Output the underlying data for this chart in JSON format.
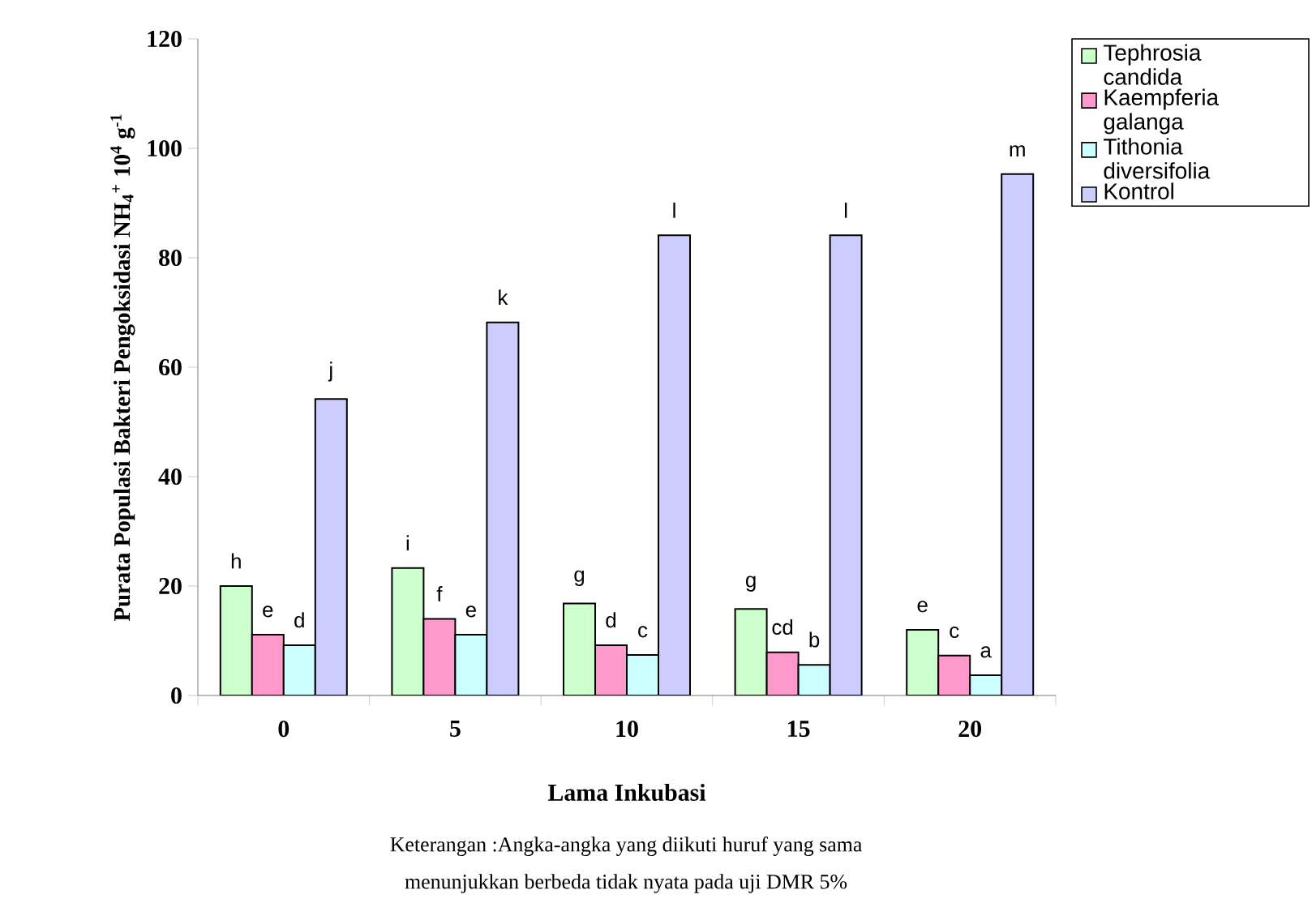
{
  "chart_data": {
    "type": "bar",
    "xlabel": "Lama Inkubasi",
    "ylabel": "Purata Populasi Bakteri Pengoksidasi NH$_{4}$$^{+}$ 10$^{4}$ g$^{-1}$",
    "categories": [
      "0",
      "5",
      "10",
      "15",
      "20"
    ],
    "series": [
      {
        "name": "Tephrosia candida",
        "color": "#ccffcc",
        "values": [
          20.0,
          23.3,
          16.8,
          15.8,
          12.0
        ],
        "value_labels": [
          "h",
          "i",
          "g",
          "g",
          "e"
        ]
      },
      {
        "name": "Kaempferia galanga",
        "color": "#ff99cc",
        "values": [
          11.1,
          14.0,
          9.2,
          7.9,
          7.3
        ],
        "value_labels": [
          "e",
          "f",
          "d",
          "cd",
          "c"
        ]
      },
      {
        "name": "Tithonia diversifolia",
        "color": "#ccffff",
        "values": [
          9.2,
          11.1,
          7.4,
          5.6,
          3.7
        ],
        "value_labels": [
          "d",
          "e",
          "c",
          "b",
          "a"
        ]
      },
      {
        "name": "Kontrol",
        "color": "#ccccff",
        "values": [
          54.2,
          68.2,
          84.1,
          84.1,
          95.3
        ],
        "value_labels": [
          "j",
          "k",
          "l",
          "l",
          "m"
        ]
      }
    ],
    "ylim": [
      0,
      120
    ],
    "yticks": [
      0,
      20,
      40,
      60,
      80,
      100,
      120
    ],
    "grid": false,
    "legend": "top right",
    "annotations": [
      "Keterangan :Angka-angka yang diikuti huruf yang sama",
      "menunjukkan berbeda tidak nyata pada uji DMR 5%"
    ]
  }
}
